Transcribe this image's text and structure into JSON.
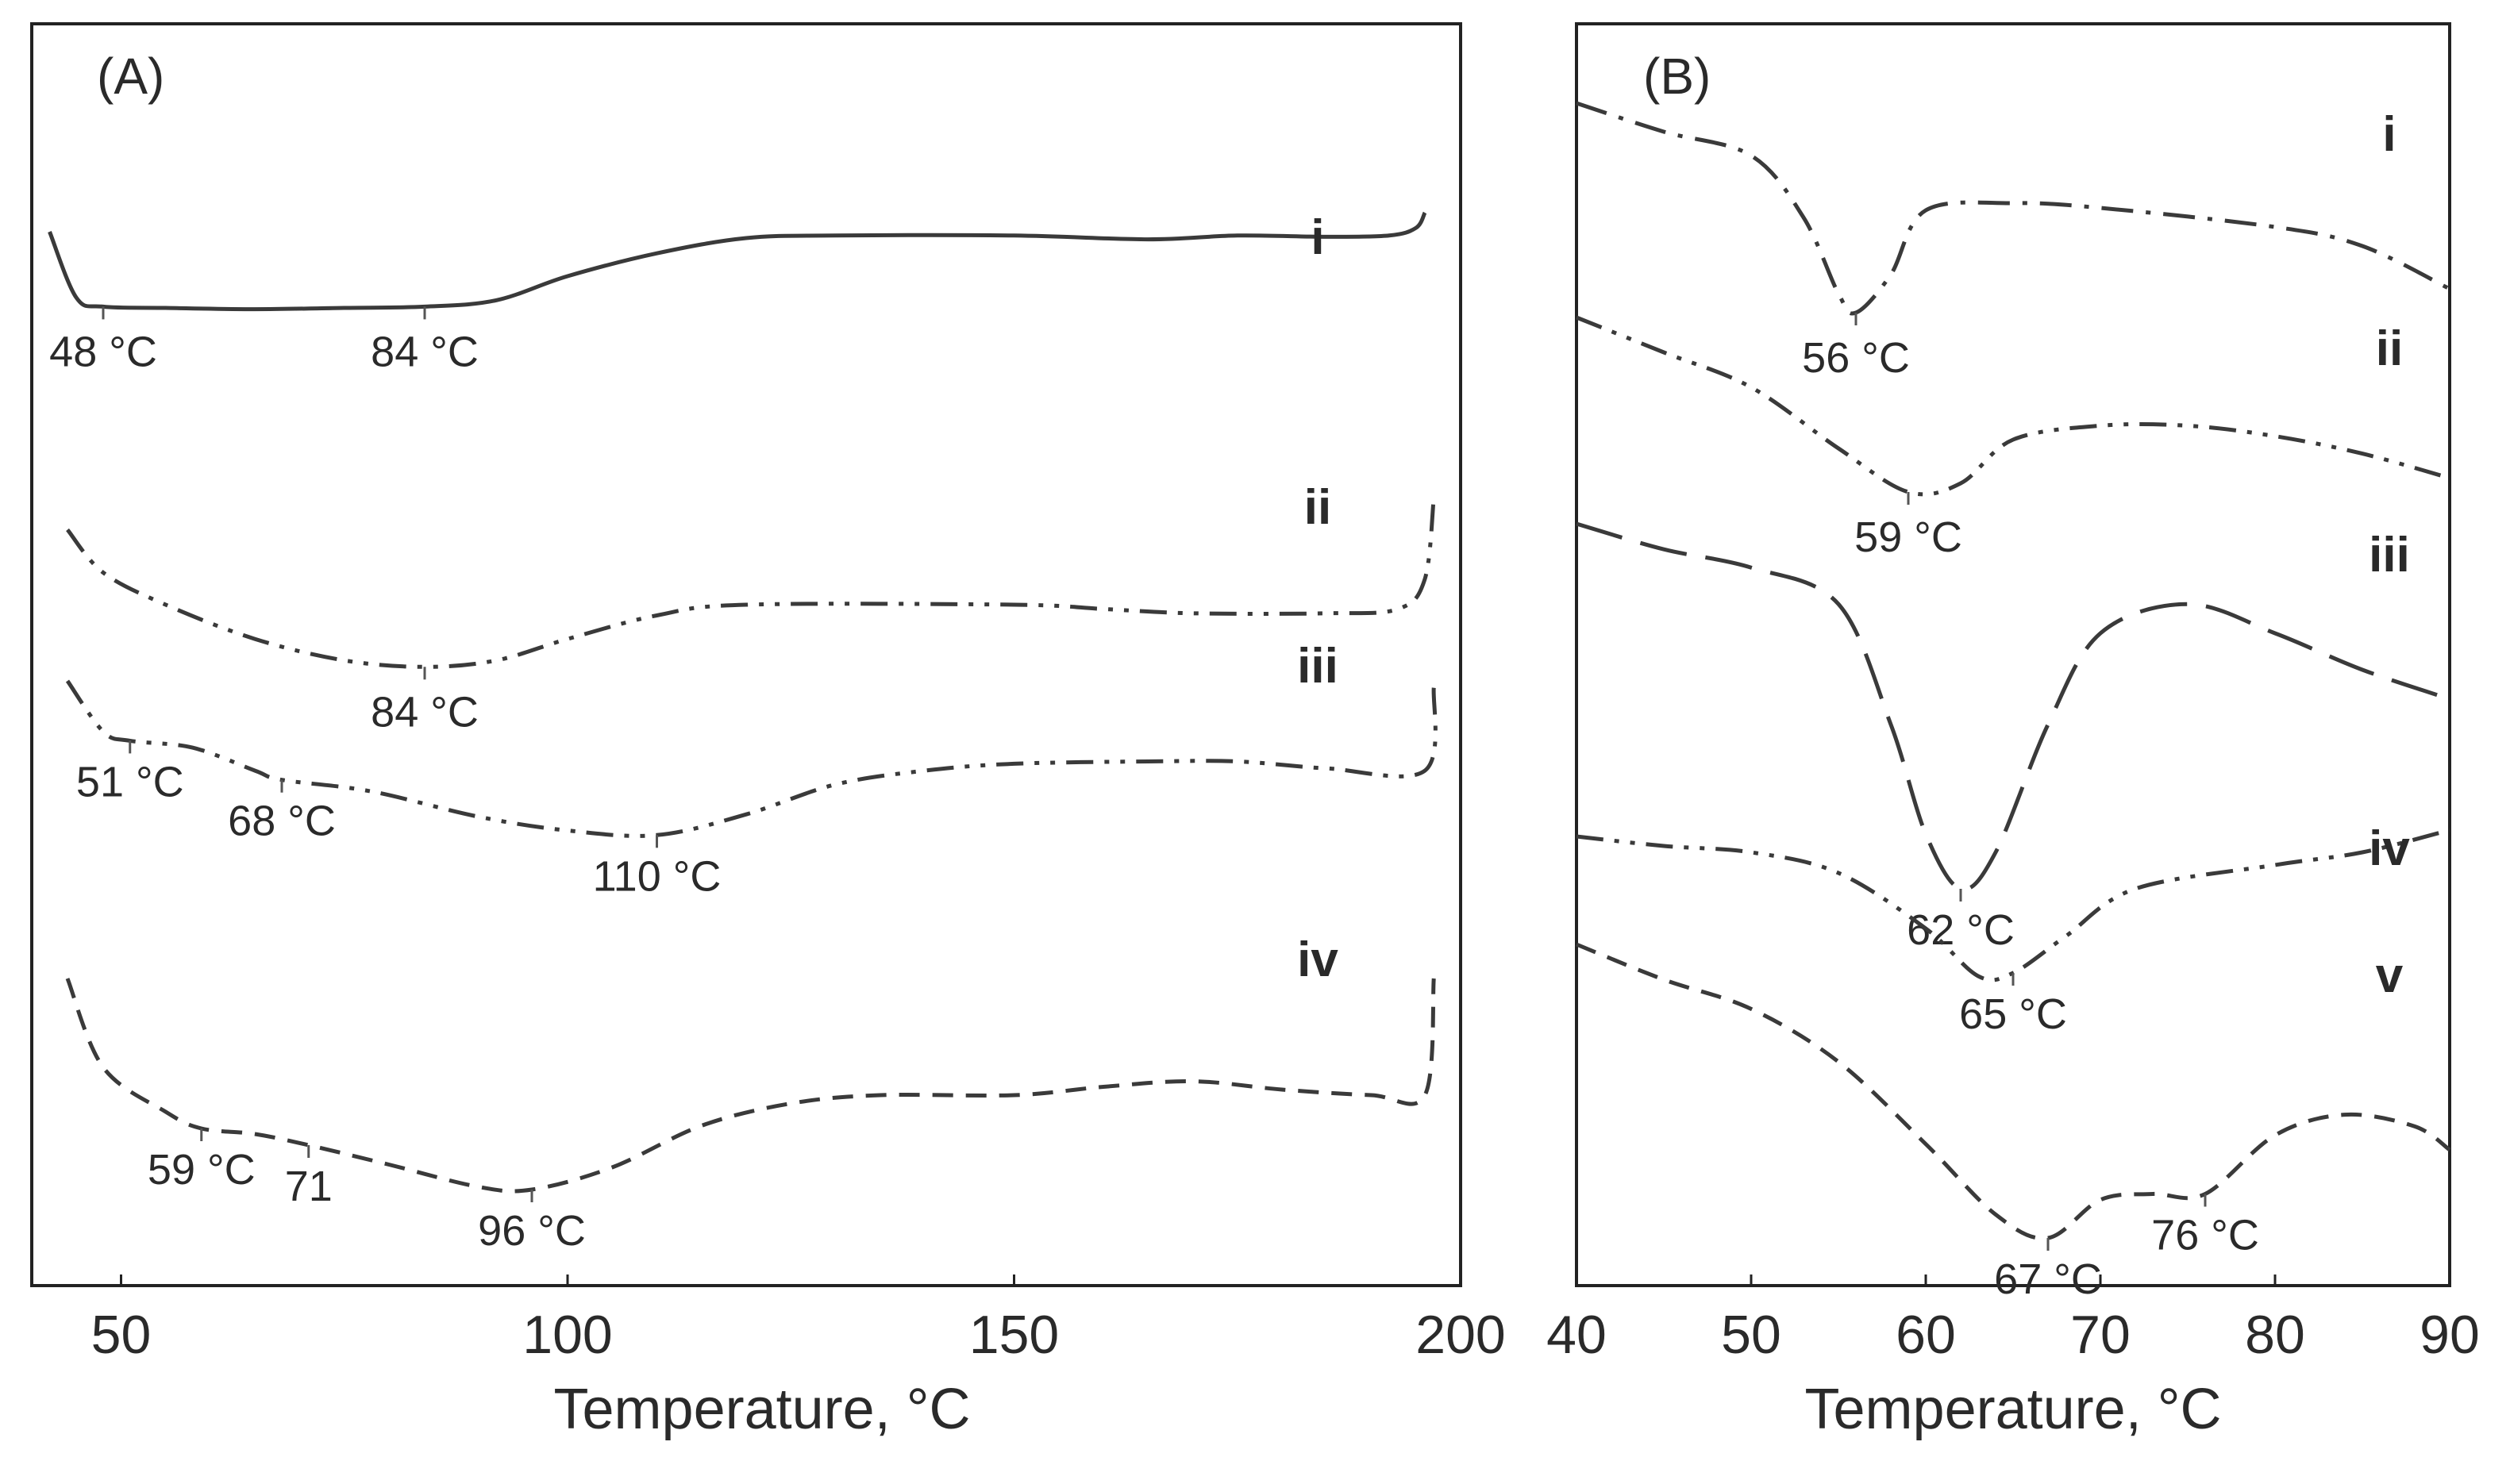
{
  "figure": {
    "panels": [
      "(A)",
      "(B)"
    ]
  },
  "chart_data": [
    {
      "type": "line",
      "panel": "(A)",
      "xlabel": "Temperature, °C",
      "ylabel": "",
      "xlim": [
        40,
        200
      ],
      "x_ticks": [
        "50",
        "100",
        "150",
        "200"
      ],
      "grid": false,
      "series": [
        {
          "name": "i",
          "style": "solid",
          "points": [
            [
              42,
              0.2
            ],
            [
              45,
              0.72
            ],
            [
              48,
              0.79
            ],
            [
              55,
              0.8
            ],
            [
              65,
              0.81
            ],
            [
              75,
              0.8
            ],
            [
              84,
              0.79
            ],
            [
              92,
              0.74
            ],
            [
              100,
              0.55
            ],
            [
              110,
              0.37
            ],
            [
              120,
              0.25
            ],
            [
              130,
              0.23
            ],
            [
              150,
              0.23
            ],
            [
              165,
              0.26
            ],
            [
              175,
              0.23
            ],
            [
              185,
              0.24
            ],
            [
              192,
              0.23
            ],
            [
              195,
              0.17
            ],
            [
              196,
              0.05
            ]
          ],
          "annotations": [
            {
              "x": 48,
              "text": "48 °C"
            },
            {
              "x": 84,
              "text": "84 °C"
            }
          ]
        },
        {
          "name": "ii",
          "style": "dash-dot-dot",
          "points": [
            [
              44,
              0.25
            ],
            [
              48,
              0.45
            ],
            [
              55,
              0.6
            ],
            [
              65,
              0.76
            ],
            [
              75,
              0.86
            ],
            [
              84,
              0.89
            ],
            [
              92,
              0.86
            ],
            [
              100,
              0.76
            ],
            [
              110,
              0.65
            ],
            [
              120,
              0.6
            ],
            [
              150,
              0.6
            ],
            [
              160,
              0.62
            ],
            [
              170,
              0.64
            ],
            [
              185,
              0.64
            ],
            [
              193,
              0.62
            ],
            [
              196,
              0.48
            ],
            [
              197,
              0.1
            ]
          ],
          "annotations": [
            {
              "x": 84,
              "text": "84 °C"
            }
          ]
        },
        {
          "name": "iii",
          "style": "dash-dot-dot",
          "points": [
            [
              44,
              0.2
            ],
            [
              48,
              0.42
            ],
            [
              51,
              0.46
            ],
            [
              58,
              0.49
            ],
            [
              65,
              0.59
            ],
            [
              68,
              0.63
            ],
            [
              78,
              0.68
            ],
            [
              90,
              0.79
            ],
            [
              100,
              0.85
            ],
            [
              110,
              0.87
            ],
            [
              120,
              0.78
            ],
            [
              130,
              0.65
            ],
            [
              140,
              0.59
            ],
            [
              150,
              0.56
            ],
            [
              165,
              0.55
            ],
            [
              175,
              0.55
            ],
            [
              185,
              0.58
            ],
            [
              196,
              0.59
            ],
            [
              197,
              0.23
            ]
          ],
          "annotations": [
            {
              "x": 51,
              "text": "51 °C"
            },
            {
              "x": 68,
              "text": "68 °C"
            },
            {
              "x": 110,
              "text": "110 °C"
            }
          ]
        },
        {
          "name": "iv",
          "style": "dashed",
          "points": [
            [
              44,
              0.18
            ],
            [
              48,
              0.5
            ],
            [
              55,
              0.66
            ],
            [
              59,
              0.72
            ],
            [
              65,
              0.74
            ],
            [
              71,
              0.78
            ],
            [
              80,
              0.85
            ],
            [
              90,
              0.93
            ],
            [
              96,
              0.94
            ],
            [
              105,
              0.86
            ],
            [
              115,
              0.71
            ],
            [
              125,
              0.63
            ],
            [
              135,
              0.6
            ],
            [
              150,
              0.6
            ],
            [
              160,
              0.57
            ],
            [
              170,
              0.55
            ],
            [
              180,
              0.58
            ],
            [
              190,
              0.6
            ],
            [
              196,
              0.6
            ],
            [
              197,
              0.18
            ]
          ],
          "annotations": [
            {
              "x": 59,
              "text": "59 °C"
            },
            {
              "x": 71,
              "text": "71"
            },
            {
              "x": 96,
              "text": "96 °C"
            }
          ]
        }
      ]
    },
    {
      "type": "line",
      "panel": "(B)",
      "xlabel": "Temperature, °C",
      "ylabel": "",
      "xlim": [
        40,
        90
      ],
      "x_ticks": [
        "40",
        "50",
        "60",
        "70",
        "80",
        "90"
      ],
      "grid": false,
      "series": [
        {
          "name": "i",
          "style": "dash-dot",
          "points": [
            [
              40,
              0.0
            ],
            [
              45,
              0.12
            ],
            [
              50,
              0.22
            ],
            [
              53,
              0.48
            ],
            [
              55,
              0.8
            ],
            [
              56,
              0.88
            ],
            [
              58,
              0.72
            ],
            [
              60,
              0.45
            ],
            [
              65,
              0.42
            ],
            [
              70,
              0.44
            ],
            [
              80,
              0.52
            ],
            [
              85,
              0.6
            ],
            [
              90,
              0.78
            ]
          ],
          "annotations": [
            {
              "x": 56,
              "text": "56 °C"
            }
          ]
        },
        {
          "name": "ii",
          "style": "dash-dot-dot",
          "points": [
            [
              40,
              0.0
            ],
            [
              45,
              0.2
            ],
            [
              50,
              0.4
            ],
            [
              55,
              0.75
            ],
            [
              59,
              1.0
            ],
            [
              62,
              0.95
            ],
            [
              65,
              0.7
            ],
            [
              70,
              0.62
            ],
            [
              75,
              0.62
            ],
            [
              80,
              0.68
            ],
            [
              85,
              0.78
            ],
            [
              90,
              0.92
            ]
          ],
          "annotations": [
            {
              "x": 59,
              "text": "59 °C"
            }
          ]
        },
        {
          "name": "iii",
          "style": "long-dash",
          "points": [
            [
              40,
              0.0
            ],
            [
              45,
              0.07
            ],
            [
              50,
              0.12
            ],
            [
              55,
              0.22
            ],
            [
              58,
              0.55
            ],
            [
              60,
              0.85
            ],
            [
              62,
              1.0
            ],
            [
              64,
              0.9
            ],
            [
              67,
              0.55
            ],
            [
              70,
              0.3
            ],
            [
              75,
              0.22
            ],
            [
              80,
              0.3
            ],
            [
              85,
              0.4
            ],
            [
              90,
              0.48
            ]
          ],
          "annotations": [
            {
              "x": 62,
              "text": "62 °C"
            }
          ]
        },
        {
          "name": "iv",
          "style": "dash-dot-dot",
          "points": [
            [
              40,
              0.12
            ],
            [
              45,
              0.18
            ],
            [
              50,
              0.22
            ],
            [
              55,
              0.35
            ],
            [
              60,
              0.7
            ],
            [
              63,
              1.0
            ],
            [
              65,
              0.98
            ],
            [
              68,
              0.75
            ],
            [
              72,
              0.45
            ],
            [
              80,
              0.3
            ],
            [
              85,
              0.22
            ],
            [
              90,
              0.08
            ]
          ],
          "annotations": [
            {
              "x": 65,
              "text": "65 °C"
            }
          ]
        },
        {
          "name": "v",
          "style": "dashed",
          "points": [
            [
              40,
              0.0
            ],
            [
              45,
              0.12
            ],
            [
              50,
              0.22
            ],
            [
              55,
              0.4
            ],
            [
              60,
              0.68
            ],
            [
              64,
              0.92
            ],
            [
              67,
              1.0
            ],
            [
              70,
              0.87
            ],
            [
              73,
              0.85
            ],
            [
              76,
              0.85
            ],
            [
              80,
              0.65
            ],
            [
              84,
              0.58
            ],
            [
              88,
              0.62
            ],
            [
              90,
              0.7
            ]
          ],
          "annotations": [
            {
              "x": 67,
              "text": "67 °C"
            },
            {
              "x": 76,
              "text": "76 °C"
            }
          ]
        }
      ]
    }
  ]
}
